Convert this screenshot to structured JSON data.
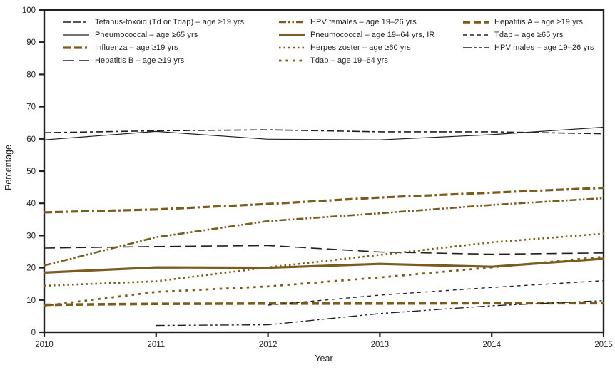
{
  "figure": {
    "xlabel": "Year",
    "ylabel": "Percentage"
  },
  "chart_data": {
    "type": "line",
    "title": "",
    "xlabel": "Year",
    "ylabel": "Percentage",
    "x": [
      2010,
      2011,
      2012,
      2013,
      2014,
      2015
    ],
    "xticks": [
      "2010",
      "2011",
      "2012",
      "2013",
      "2014",
      "2015"
    ],
    "yticks": [
      0,
      10,
      20,
      30,
      40,
      50,
      60,
      70,
      80,
      90,
      100
    ],
    "ylim": [
      0,
      100
    ],
    "grid": false,
    "legend_position": "top-inside, 3 columns",
    "frame_color": "#231f20",
    "accent_brown": "#7a5c1e",
    "series": [
      {
        "key": "tetanus-td-tdap",
        "name": "Tetanus-toxoid (Td or Tdap) – age ≥19 yrs",
        "color": "#231f20",
        "width": 1.6,
        "dash": "10 4 10 4 4 4",
        "legend_col": 0,
        "values": [
          61.9,
          62.5,
          62.8,
          62.2,
          62.2,
          61.6
        ]
      },
      {
        "key": "pneumococcal-65",
        "name": "Pneumococcal – age ≥65 yrs",
        "color": "#231f20",
        "width": 1.2,
        "dash": "",
        "legend_col": 0,
        "values": [
          59.7,
          62.3,
          59.9,
          59.7,
          61.3,
          63.6
        ]
      },
      {
        "key": "influenza",
        "name": "Influenza – age ≥19 yrs",
        "color": "#7a5c1e",
        "width": 3.2,
        "dash": "11 4 11 4 3 4",
        "legend_col": 0,
        "values": [
          37.2,
          38.1,
          39.8,
          41.8,
          43.3,
          44.8
        ]
      },
      {
        "key": "hepatitis-b",
        "name": "Hepatitis B – age ≥19 yrs",
        "color": "#231f20",
        "width": 1.6,
        "dash": "15 7",
        "legend_col": 0,
        "values": [
          26.1,
          26.6,
          26.9,
          24.9,
          24.2,
          24.6
        ]
      },
      {
        "key": "hpv-females",
        "name": "HPV females – age 19–26 yrs",
        "color": "#7a5c1e",
        "width": 2.6,
        "dash": "10 3 2.5 3 2.5 3",
        "legend_col": 1,
        "values": [
          20.7,
          29.5,
          34.5,
          36.9,
          39.5,
          41.6
        ]
      },
      {
        "key": "pneumococcal-19-64-ir",
        "name": "Pneumococcal – age 19–64 yrs, IR",
        "color": "#7a5c1e",
        "width": 3.2,
        "dash": "",
        "legend_col": 1,
        "values": [
          18.5,
          20.1,
          20.0,
          21.2,
          20.3,
          22.8
        ]
      },
      {
        "key": "herpes-zoster",
        "name": "Herpes zoster – age ≥60 yrs",
        "color": "#7a5c1e",
        "width": 2.6,
        "dash": "2.5 4",
        "legend_col": 1,
        "values": [
          14.4,
          15.8,
          20.1,
          24.0,
          27.9,
          30.6
        ]
      },
      {
        "key": "tdap-19-64",
        "name": "Tdap – age 19–64 yrs",
        "color": "#7a5c1e",
        "width": 2.8,
        "dash": "3.5 6",
        "legend_col": 1,
        "values": [
          8.2,
          12.5,
          14.2,
          17.0,
          20.1,
          23.4
        ]
      },
      {
        "key": "hepatitis-a",
        "name": "Hepatitis A – age ≥19 yrs",
        "color": "#7a5c1e",
        "width": 3.6,
        "dash": "10 5",
        "legend_col": 2,
        "values": [
          8.5,
          8.8,
          8.9,
          8.9,
          9.0,
          9.0
        ]
      },
      {
        "key": "tdap-65",
        "name": "Tdap – age ≥65 yrs",
        "color": "#231f20",
        "width": 1.4,
        "dash": "5 5",
        "legend_col": 2,
        "values": [
          null,
          null,
          8.4,
          11.5,
          13.9,
          16.0
        ]
      },
      {
        "key": "hpv-males",
        "name": "HPV males – age 19–26 yrs",
        "color": "#231f20",
        "width": 1.4,
        "dash": "12 4 3 4 3 4",
        "legend_col": 2,
        "values": [
          null,
          2.1,
          2.3,
          5.8,
          8.2,
          9.8
        ]
      }
    ]
  }
}
